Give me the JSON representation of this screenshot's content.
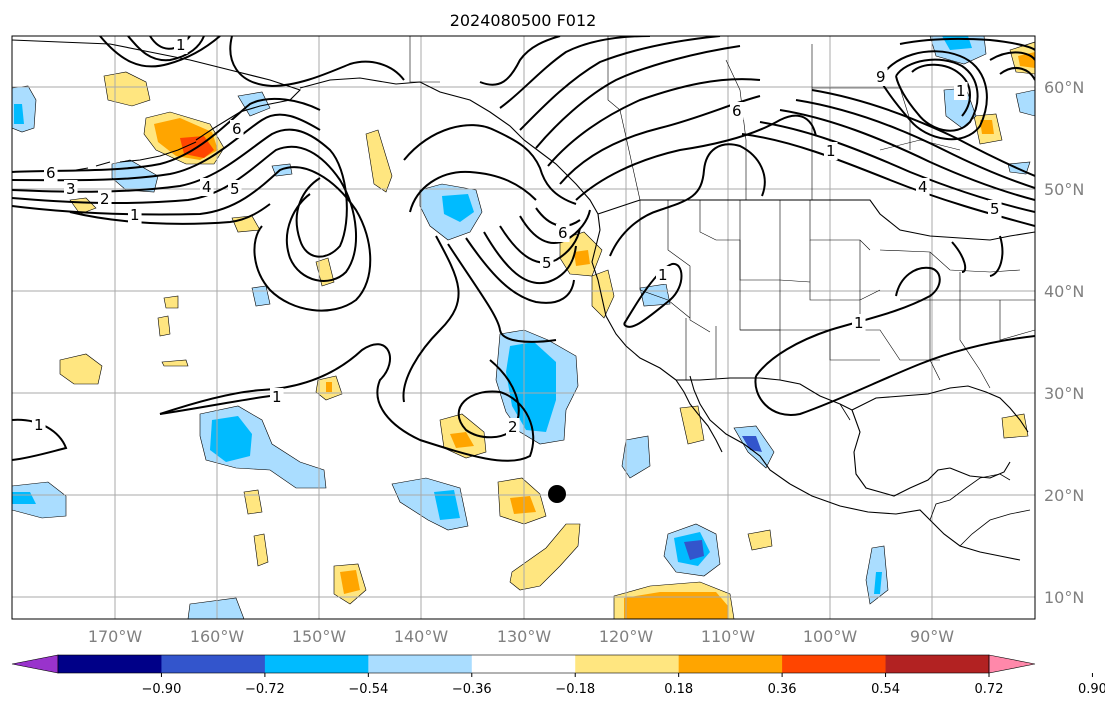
{
  "title": "2024080500 F012",
  "lat_labels": [
    "60°N",
    "50°N",
    "40°N",
    "30°N",
    "20°N",
    "10°N"
  ],
  "lon_labels": [
    "170°W",
    "160°W",
    "150°W",
    "140°W",
    "130°W",
    "120°W",
    "110°W",
    "100°W",
    "90°W"
  ],
  "colorbar": {
    "colors": [
      "#9933cc",
      "#000088",
      "#3355cc",
      "#00bbff",
      "#aaddff",
      "#ffffff",
      "#ffe680",
      "#ffa500",
      "#ff4500",
      "#b22222",
      "#ff88aa"
    ],
    "tick_labels": [
      "−0.90",
      "−0.72",
      "−0.54",
      "−0.36",
      "−0.18",
      "0.18",
      "0.36",
      "0.54",
      "0.72",
      "0.90"
    ]
  },
  "contour_labels": [
    {
      "text": "1",
      "id": "c1"
    },
    {
      "text": "6",
      "id": "c2"
    },
    {
      "text": "3",
      "id": "c3"
    },
    {
      "text": "2",
      "id": "c4"
    },
    {
      "text": "1",
      "id": "c5"
    },
    {
      "text": "4",
      "id": "c6"
    },
    {
      "text": "5",
      "id": "c7"
    },
    {
      "text": "6",
      "id": "c8"
    },
    {
      "text": "6",
      "id": "c9"
    },
    {
      "text": "5",
      "id": "c10"
    },
    {
      "text": "1",
      "id": "c11"
    },
    {
      "text": "1",
      "id": "c12"
    },
    {
      "text": "1",
      "id": "c13"
    },
    {
      "text": "2",
      "id": "c14"
    },
    {
      "text": "6",
      "id": "c15"
    },
    {
      "text": "1",
      "id": "c16"
    },
    {
      "text": "5",
      "id": "c17"
    },
    {
      "text": "4",
      "id": "c18"
    },
    {
      "text": "9",
      "id": "c19"
    },
    {
      "text": "1",
      "id": "c20"
    },
    {
      "text": "1",
      "id": "c21"
    }
  ]
}
